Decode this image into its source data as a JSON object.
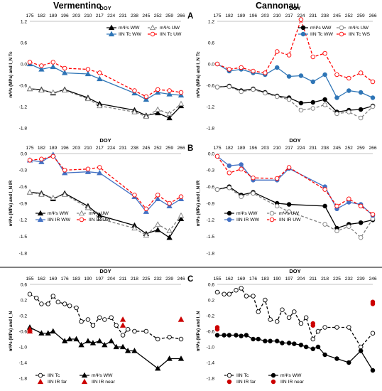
{
  "titles": {
    "left": "Vermentino",
    "right": "Cannonau"
  },
  "panel_labels": {
    "a": "A",
    "b": "B",
    "c": "C"
  },
  "chart_data": [
    {
      "id": "A-vermentino",
      "type": "line",
      "xlabel": "DOY",
      "ylabel": "mΨs (MPa) and I_N Tc",
      "ylim": [
        -1.8,
        1.2
      ],
      "yticks": [
        1.2,
        0.6,
        0.0,
        -0.6,
        -1.2,
        -1.8
      ],
      "x": [
        175,
        182,
        189,
        196,
        203,
        210,
        217,
        224,
        231,
        238,
        245,
        252,
        259,
        266
      ],
      "series": [
        {
          "name": "mΨs WW",
          "color": "#000000",
          "dash": "solid",
          "marker": "triangle-filled",
          "x": [
            175,
            182,
            189,
            196,
            210,
            217,
            238,
            245,
            252,
            259,
            266
          ],
          "values": [
            -0.7,
            -0.72,
            -0.82,
            -0.72,
            -0.95,
            -1.12,
            -1.3,
            -1.45,
            -1.38,
            -1.52,
            -1.18
          ]
        },
        {
          "name": "mΨs UW",
          "color": "#7f7f7f",
          "dash": "dashed",
          "marker": "triangle-open",
          "x": [
            175,
            182,
            189,
            196,
            210,
            217,
            238,
            245,
            252,
            259,
            266
          ],
          "values": [
            -0.7,
            -0.74,
            -0.8,
            -0.74,
            -0.98,
            -1.18,
            -1.35,
            -1.48,
            -1.28,
            -1.4,
            -1.12
          ]
        },
        {
          "name": "IIN Tc WW",
          "color": "#2e75b6",
          "dash": "solid",
          "marker": "triangle-filled",
          "x": [
            175,
            182,
            189,
            196,
            210,
            217,
            238,
            245,
            252,
            259,
            266
          ],
          "values": [
            0.0,
            -0.15,
            -0.08,
            -0.25,
            -0.28,
            -0.42,
            -0.82,
            -1.0,
            -0.8,
            -0.85,
            -0.88
          ]
        },
        {
          "name": "IIN Tc UW",
          "color": "#ff0000",
          "dash": "dashed",
          "marker": "circle-open",
          "x": [
            175,
            182,
            189,
            196,
            210,
            217,
            238,
            245,
            252,
            259,
            266
          ],
          "values": [
            0.05,
            -0.05,
            0.05,
            -0.12,
            -0.15,
            -0.25,
            -0.75,
            -0.92,
            -0.72,
            -0.75,
            -0.8
          ]
        }
      ],
      "legend": [
        "mΨs WW",
        "mΨs UW",
        "IIN Tc WW",
        "IIN Tc UW"
      ]
    },
    {
      "id": "A-cannonau",
      "type": "line",
      "xlabel": "DOY",
      "ylabel": "mΨs (MPa) and I_N Tc",
      "ylim": [
        -1.8,
        1.2
      ],
      "yticks": [
        1.2,
        0.6,
        0.0,
        -0.6,
        -1.2,
        -1.8
      ],
      "x": [
        175,
        182,
        189,
        196,
        203,
        210,
        217,
        224,
        231,
        238,
        245,
        252,
        259,
        266
      ],
      "series": [
        {
          "name": "mΨs WW",
          "color": "#000000",
          "dash": "solid",
          "marker": "circle-filled",
          "x": [
            175,
            182,
            189,
            196,
            203,
            210,
            217,
            224,
            231,
            238,
            245,
            252,
            259,
            266
          ],
          "values": [
            -0.65,
            -0.62,
            -0.75,
            -0.7,
            -0.8,
            -0.9,
            -0.95,
            -1.1,
            -1.08,
            -1.0,
            -1.35,
            -1.3,
            -1.28,
            -1.18
          ]
        },
        {
          "name": "mΨs UW",
          "color": "#7f7f7f",
          "dash": "dashed",
          "marker": "circle-open",
          "x": [
            175,
            182,
            189,
            196,
            203,
            210,
            217,
            224,
            231,
            238,
            245,
            252,
            259,
            266
          ],
          "values": [
            -0.65,
            -0.64,
            -0.78,
            -0.72,
            -0.82,
            -0.92,
            -1.0,
            -1.3,
            -1.25,
            -1.15,
            -1.4,
            -1.35,
            -1.52,
            -1.2
          ]
        },
        {
          "name": "IIN Tc WW",
          "color": "#2e75b6",
          "dash": "solid",
          "marker": "circle-filled",
          "x": [
            175,
            182,
            189,
            196,
            203,
            210,
            217,
            224,
            231,
            238,
            245,
            252,
            259,
            266
          ],
          "values": [
            0.0,
            -0.2,
            -0.15,
            -0.25,
            -0.3,
            -0.1,
            -0.35,
            -0.33,
            -0.5,
            -0.3,
            -0.95,
            -0.75,
            -0.8,
            -0.95
          ]
        },
        {
          "name": "IIN Tc WS",
          "color": "#ff0000",
          "dash": "dashed",
          "marker": "circle-open",
          "x": [
            175,
            182,
            189,
            196,
            203,
            210,
            217,
            224,
            231,
            238,
            245,
            252,
            259,
            266
          ],
          "values": [
            0.0,
            -0.15,
            -0.1,
            -0.2,
            -0.25,
            0.35,
            0.25,
            1.25,
            0.2,
            0.3,
            -0.3,
            -0.4,
            -0.25,
            -0.5
          ]
        }
      ],
      "legend": [
        "mΨs WW",
        "mΨs UW",
        "IIN Tc WW",
        "IIN Tc WS"
      ]
    },
    {
      "id": "B-vermentino",
      "type": "line",
      "xlabel": "DOY",
      "ylabel": "mΨs (MPa) and I_N IR",
      "ylim": [
        -1.8,
        0.0
      ],
      "yticks": [
        0.0,
        -0.3,
        -0.6,
        -0.9,
        -1.2,
        -1.5,
        -1.8
      ],
      "x": [
        175,
        182,
        189,
        196,
        203,
        210,
        217,
        224,
        231,
        238,
        245,
        252,
        259,
        266
      ],
      "series": [
        {
          "name": "mΨs WW",
          "color": "#000000",
          "dash": "solid",
          "marker": "triangle-filled",
          "x": [
            175,
            182,
            189,
            196,
            210,
            217,
            238,
            245,
            252,
            259,
            266
          ],
          "values": [
            -0.7,
            -0.72,
            -0.82,
            -0.72,
            -0.95,
            -1.12,
            -1.3,
            -1.45,
            -1.38,
            -1.52,
            -1.18
          ]
        },
        {
          "name": "mΨs UW",
          "color": "#7f7f7f",
          "dash": "dashed",
          "marker": "triangle-open",
          "x": [
            175,
            182,
            189,
            196,
            210,
            217,
            238,
            245,
            252,
            259,
            266
          ],
          "values": [
            -0.7,
            -0.74,
            -0.8,
            -0.74,
            -0.98,
            -1.18,
            -1.35,
            -1.48,
            -1.28,
            -1.4,
            -1.12
          ]
        },
        {
          "name": "IIN IR WW",
          "color": "#4472c4",
          "dash": "solid",
          "marker": "triangle-filled",
          "x": [
            175,
            182,
            189,
            196,
            210,
            217,
            238,
            245,
            252,
            259,
            266
          ],
          "values": [
            -0.12,
            -0.15,
            -0.02,
            -0.35,
            -0.33,
            -0.35,
            -0.78,
            -1.05,
            -0.82,
            -0.95,
            -0.82
          ]
        },
        {
          "name": "IIN IR UW",
          "color": "#ff0000",
          "dash": "dashed",
          "marker": "circle-open",
          "x": [
            175,
            182,
            189,
            196,
            210,
            217,
            238,
            245,
            252,
            259,
            266
          ],
          "values": [
            -0.12,
            -0.1,
            -0.05,
            -0.3,
            -0.28,
            -0.25,
            -0.75,
            -1.0,
            -0.75,
            -0.9,
            -0.78
          ]
        }
      ],
      "legend": [
        "mΨs WW",
        "mΨs UW",
        "IIN IR WW",
        "IIN IR UW"
      ]
    },
    {
      "id": "B-cannonau",
      "type": "line",
      "xlabel": "DOY",
      "ylabel": "mΨs (MPa) and I_N IR",
      "ylim": [
        -1.8,
        0.0
      ],
      "yticks": [
        0.0,
        -0.3,
        -0.6,
        -0.9,
        -1.2,
        -1.5,
        -1.8
      ],
      "x": [
        175,
        182,
        189,
        196,
        203,
        210,
        217,
        224,
        231,
        238,
        245,
        252,
        259,
        266
      ],
      "series": [
        {
          "name": "mΨs WW",
          "color": "#000000",
          "dash": "solid",
          "marker": "circle-filled",
          "x": [
            175,
            182,
            189,
            196,
            210,
            217,
            238,
            245,
            252,
            259,
            266
          ],
          "values": [
            -0.65,
            -0.6,
            -0.75,
            -0.7,
            -0.9,
            -0.92,
            -0.95,
            -1.35,
            -1.28,
            -1.25,
            -1.2
          ]
        },
        {
          "name": "mΨs UW",
          "color": "#7f7f7f",
          "dash": "dashed",
          "marker": "circle-open",
          "x": [
            175,
            182,
            189,
            196,
            210,
            217,
            238,
            245,
            252,
            259,
            266
          ],
          "values": [
            -0.65,
            -0.62,
            -0.78,
            -0.72,
            -0.95,
            -1.05,
            -1.28,
            -1.4,
            -1.32,
            -1.52,
            -1.18
          ]
        },
        {
          "name": "IIN IR WW",
          "color": "#4472c4",
          "dash": "solid",
          "marker": "circle-filled",
          "x": [
            175,
            182,
            189,
            196,
            210,
            217,
            238,
            245,
            252,
            259,
            266
          ],
          "values": [
            -0.05,
            -0.22,
            -0.2,
            -0.48,
            -0.48,
            -0.27,
            -0.6,
            -1.0,
            -0.88,
            -0.92,
            -1.12
          ]
        },
        {
          "name": "IIN IR UW",
          "color": "#ff0000",
          "dash": "dashed",
          "marker": "circle-open",
          "x": [
            175,
            182,
            189,
            196,
            210,
            217,
            238,
            245,
            252,
            259,
            266
          ],
          "values": [
            -0.05,
            -0.35,
            -0.28,
            -0.44,
            -0.45,
            -0.25,
            -0.65,
            -0.95,
            -0.82,
            -0.95,
            -1.1
          ]
        }
      ],
      "legend": [
        "mΨs WW",
        "mΨs UW",
        "IIN IR WW",
        "IIN IR UW"
      ]
    },
    {
      "id": "C-vermentino",
      "type": "line",
      "xlabel": "DOY",
      "ylabel": "mΨs (MPa) and I_N",
      "ylim": [
        -1.8,
        0.6
      ],
      "yticks": [
        0.6,
        0.2,
        -0.2,
        -0.6,
        -1.0,
        -1.4,
        -1.8
      ],
      "x": [
        155,
        162,
        169,
        176,
        183,
        190,
        197,
        204,
        211,
        218,
        225,
        232,
        239,
        246
      ],
      "series": [
        {
          "name": "IIN Tc",
          "color": "#000000",
          "dash": "dashed",
          "marker": "circle-open",
          "x": [
            155,
            159,
            162,
            166,
            169,
            172,
            176,
            179,
            183,
            186,
            190,
            193,
            197,
            200,
            204,
            207,
            211,
            214,
            218,
            225,
            232,
            239,
            246
          ],
          "values": [
            0.35,
            0.25,
            0.1,
            0.1,
            0.3,
            0.15,
            0.1,
            0.05,
            0.0,
            -0.35,
            -0.3,
            -0.45,
            -0.25,
            -0.3,
            -0.25,
            -0.45,
            -0.7,
            -0.55,
            -0.6,
            -0.6,
            -0.8,
            -0.75,
            -0.8
          ]
        },
        {
          "name": "mΨs WW",
          "color": "#000000",
          "dash": "solid",
          "marker": "triangle-filled",
          "x": [
            155,
            162,
            166,
            169,
            176,
            179,
            183,
            186,
            190,
            193,
            197,
            200,
            204,
            207,
            211,
            214,
            218,
            232,
            239,
            246
          ],
          "values": [
            -0.5,
            -0.65,
            -0.65,
            -0.6,
            -0.85,
            -0.8,
            -0.8,
            -0.95,
            -0.85,
            -0.9,
            -0.85,
            -0.95,
            -0.85,
            -1.0,
            -1.0,
            -1.1,
            -1.1,
            -1.55,
            -1.3,
            -1.3
          ]
        },
        {
          "name": "IIN IR far",
          "color": "#cc0000",
          "dash": "none",
          "marker": "triangle-filled",
          "x": [
            155,
            211,
            246
          ],
          "values": [
            -0.55,
            -0.3,
            -0.3
          ]
        },
        {
          "name": "IIN IR near",
          "color": "#cc0000",
          "dash": "none",
          "marker": "triangle-filled",
          "x": [
            155,
            211,
            246
          ],
          "values": [
            -0.6,
            -0.45,
            -0.3
          ]
        }
      ],
      "legend": [
        "IIN Tc",
        "mΨs WW",
        "IIN IR far",
        "IIN IR near"
      ]
    },
    {
      "id": "C-cannonau",
      "type": "line",
      "xlabel": "DOY",
      "ylabel": "mΨs (MPa) and I_N",
      "ylim": [
        -1.8,
        0.6
      ],
      "yticks": [
        0.6,
        0.2,
        -0.2,
        -0.6,
        -1.0,
        -1.4,
        -1.8
      ],
      "x": [
        155,
        162,
        169,
        176,
        183,
        190,
        197,
        204,
        211,
        218,
        225,
        232,
        239,
        246
      ],
      "series": [
        {
          "name": "IIN Tc",
          "color": "#000000",
          "dash": "dashed",
          "marker": "circle-open",
          "x": [
            155,
            159,
            162,
            166,
            169,
            172,
            176,
            179,
            183,
            186,
            190,
            193,
            197,
            200,
            204,
            207,
            211,
            214,
            218,
            225,
            232,
            239,
            246
          ],
          "values": [
            0.4,
            0.35,
            0.35,
            0.45,
            0.5,
            0.3,
            0.3,
            -0.1,
            0.2,
            -0.3,
            -0.35,
            -0.05,
            -0.25,
            -0.1,
            -0.4,
            -0.25,
            -0.8,
            -0.6,
            -0.5,
            -0.5,
            -0.5,
            -1.0,
            -0.65
          ]
        },
        {
          "name": "mΨs WW",
          "color": "#000000",
          "dash": "solid",
          "marker": "circle-filled",
          "x": [
            155,
            159,
            162,
            166,
            169,
            172,
            176,
            179,
            183,
            186,
            190,
            193,
            197,
            200,
            204,
            207,
            211,
            214,
            218,
            225,
            232,
            239,
            246
          ],
          "values": [
            -0.7,
            -0.7,
            -0.7,
            -0.7,
            -0.72,
            -0.7,
            -0.8,
            -0.8,
            -0.85,
            -0.85,
            -0.85,
            -0.9,
            -0.9,
            -0.92,
            -0.95,
            -1.0,
            -1.05,
            -1.0,
            -1.2,
            -1.3,
            -1.4,
            -1.1,
            -1.6
          ]
        },
        {
          "name": "IIN IR far",
          "color": "#cc0000",
          "dash": "none",
          "marker": "circle-filled",
          "x": [
            155,
            211,
            246
          ],
          "values": [
            -0.5,
            -0.4,
            0.15
          ]
        },
        {
          "name": "IIN IR near",
          "color": "#cc0000",
          "dash": "none",
          "marker": "circle-filled",
          "x": [
            155,
            211,
            246
          ],
          "values": [
            -0.55,
            -0.45,
            0.1
          ]
        }
      ],
      "legend": [
        "IIN Tc",
        "mΨs WW",
        "IIN IR far",
        "IIN IR near"
      ]
    }
  ]
}
